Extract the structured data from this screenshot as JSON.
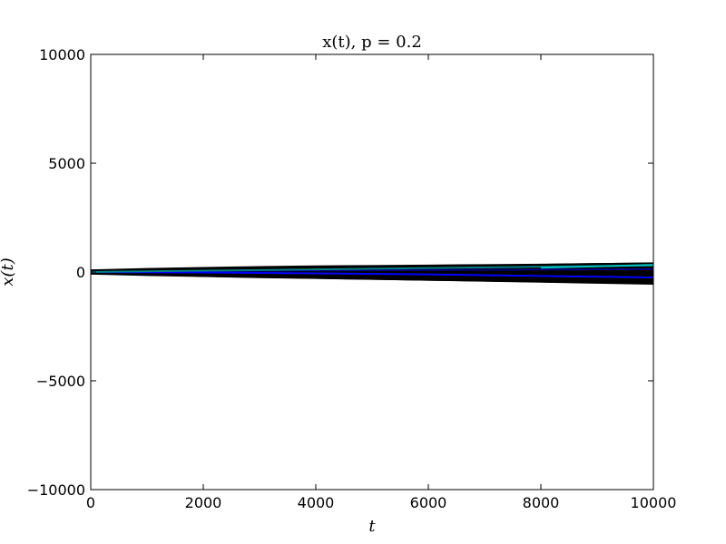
{
  "chart_data": {
    "type": "line",
    "title": "x(t), p = 0.2",
    "xlabel": "t",
    "ylabel": "x(t)",
    "xlim": [
      0,
      10000
    ],
    "ylim": [
      -10000,
      10000
    ],
    "xticks": [
      0,
      2000,
      4000,
      6000,
      8000,
      10000
    ],
    "xtick_labels": [
      "0",
      "2000",
      "4000",
      "6000",
      "8000",
      "10000"
    ],
    "yticks": [
      -10000,
      -5000,
      0,
      5000,
      10000
    ],
    "ytick_labels": [
      "−10000",
      "−5000",
      "0",
      "5000",
      "10000"
    ],
    "grid": false,
    "legend": "none",
    "band": {
      "description_color": "#000000",
      "x": [
        0,
        1000,
        2000,
        3000,
        4000,
        5000,
        6000,
        7000,
        8000,
        9000,
        10000
      ],
      "upper": [
        120,
        180,
        230,
        270,
        300,
        320,
        340,
        360,
        380,
        410,
        430
      ],
      "lower": [
        -120,
        -180,
        -230,
        -280,
        -320,
        -360,
        -400,
        -440,
        -480,
        -520,
        -560
      ]
    },
    "series": [
      {
        "color": "#000000",
        "values_x": [
          0,
          2000,
          4000,
          6000,
          8000,
          10000
        ],
        "values_y": [
          0,
          150,
          200,
          260,
          330,
          400
        ]
      },
      {
        "color": "#000000",
        "values_x": [
          0,
          2000,
          4000,
          6000,
          8000,
          10000
        ],
        "values_y": [
          0,
          -180,
          -270,
          -360,
          -450,
          -540
        ]
      },
      {
        "color": "#000080",
        "values_x": [
          0,
          2000,
          4000,
          6000,
          8000,
          10000
        ],
        "values_y": [
          0,
          40,
          70,
          90,
          110,
          130
        ]
      },
      {
        "color": "#0000ff",
        "values_x": [
          0,
          2000,
          4000,
          6000,
          8000,
          10000
        ],
        "values_y": [
          0,
          -20,
          -60,
          -110,
          -180,
          -250
        ]
      },
      {
        "color": "#008080",
        "values_x": [
          0,
          2000,
          4000,
          6000,
          8000,
          10000
        ],
        "values_y": [
          0,
          60,
          120,
          180,
          240,
          300
        ]
      },
      {
        "color": "#00bfbf",
        "values_x": [
          8000,
          9000,
          10000
        ],
        "values_y": [
          200,
          260,
          330
        ]
      }
    ]
  }
}
